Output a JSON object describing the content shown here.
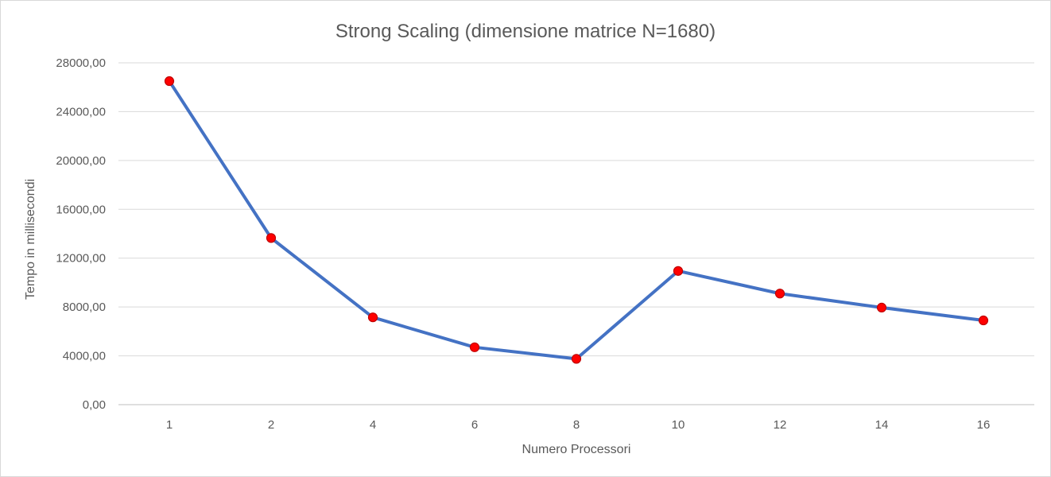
{
  "chart_data": {
    "type": "line",
    "title": "Strong Scaling (dimensione matrice N=1680)",
    "xlabel": "Numero Processori",
    "ylabel": "Tempo in millisecondi",
    "categories": [
      "1",
      "2",
      "4",
      "6",
      "8",
      "10",
      "12",
      "14",
      "16"
    ],
    "series": [
      {
        "values": [
          26500,
          13650,
          7150,
          4700,
          3750,
          10950,
          9100,
          7950,
          6900
        ],
        "line_color": "#4472c4",
        "marker_color": "#ff0000",
        "marker_edge_color": "#c00000"
      }
    ],
    "ylim": [
      0,
      28000
    ],
    "yticks": [
      0,
      4000,
      8000,
      12000,
      16000,
      20000,
      24000,
      28000
    ],
    "ytick_labels": [
      "0,00",
      "4000,00",
      "8000,00",
      "12000,00",
      "16000,00",
      "20000,00",
      "24000,00",
      "28000,00"
    ],
    "grid": true,
    "legend": "none"
  }
}
